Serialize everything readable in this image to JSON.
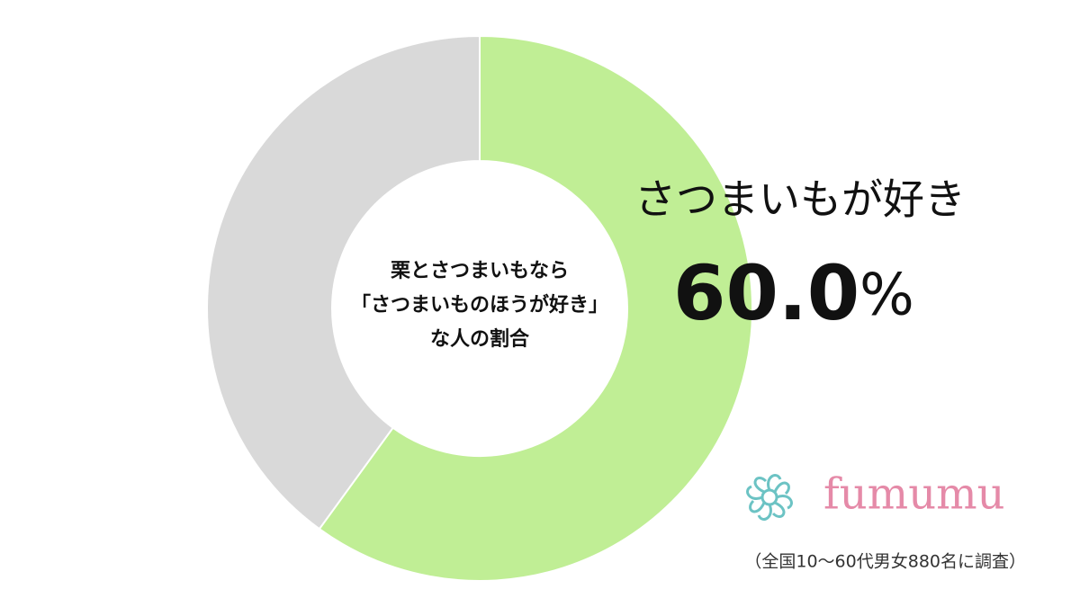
{
  "chart_data": {
    "type": "donut",
    "title": [
      "栗とさつまいもなら",
      "「さつまいものほうが好き」",
      "な人の割合"
    ],
    "categories": [
      "さつまいもが好き",
      null
    ],
    "values": [
      60,
      40
    ],
    "value_labels": [
      "60.0",
      null
    ],
    "value_unit": "%",
    "colors": [
      "#c0ee95",
      "#d9d9d9"
    ],
    "brand": "fumumu",
    "note": "（全国10～60代男女880名に調査）"
  }
}
